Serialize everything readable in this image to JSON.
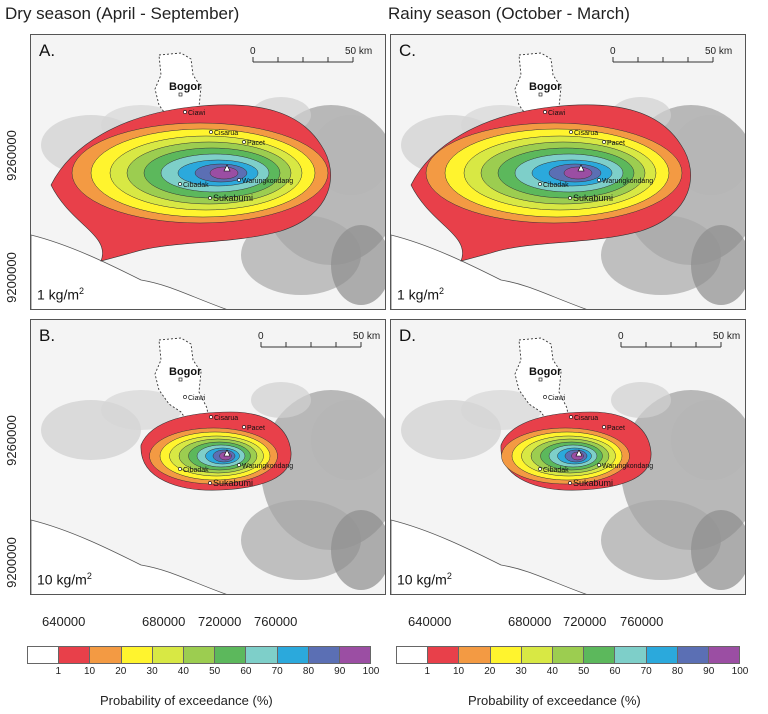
{
  "titles": {
    "dry": "Dry season (April - September)",
    "rainy": "Rainy season (October - March)"
  },
  "panels": [
    {
      "id": "A",
      "label": "A.",
      "deposit": "1 kg/m",
      "sup": "2"
    },
    {
      "id": "C",
      "label": "C.",
      "deposit": "1 kg/m",
      "sup": "2"
    },
    {
      "id": "B",
      "label": "B.",
      "deposit": "10 kg/m",
      "sup": "2"
    },
    {
      "id": "D",
      "label": "D.",
      "deposit": "10 kg/m",
      "sup": "2"
    }
  ],
  "scale_bar": {
    "start": "0",
    "end": "50 km"
  },
  "places": {
    "bogor": "Bogor",
    "ciawi": "Ciawi",
    "cisarua": "Cisarua",
    "pacet": "Pacet",
    "cibadak": "Cibadak",
    "warungkondang": "Warungkondang",
    "sukabumi": "Sukabumi"
  },
  "y_ticks": [
    "9260000",
    "9200000"
  ],
  "x_ticks": [
    "640000",
    "680000",
    "720000",
    "760000"
  ],
  "legend": {
    "title": "Probability of exceedance (%)",
    "ticks": [
      "1",
      "10",
      "20",
      "30",
      "40",
      "50",
      "60",
      "70",
      "80",
      "90",
      "100"
    ],
    "colors": [
      "#ffffff",
      "#e8404a",
      "#f39a43",
      "#fff42e",
      "#d8e844",
      "#9ccd50",
      "#5cb85c",
      "#7ecfc9",
      "#2ba9dc",
      "#5b6fb4",
      "#9b4ea3"
    ]
  }
}
